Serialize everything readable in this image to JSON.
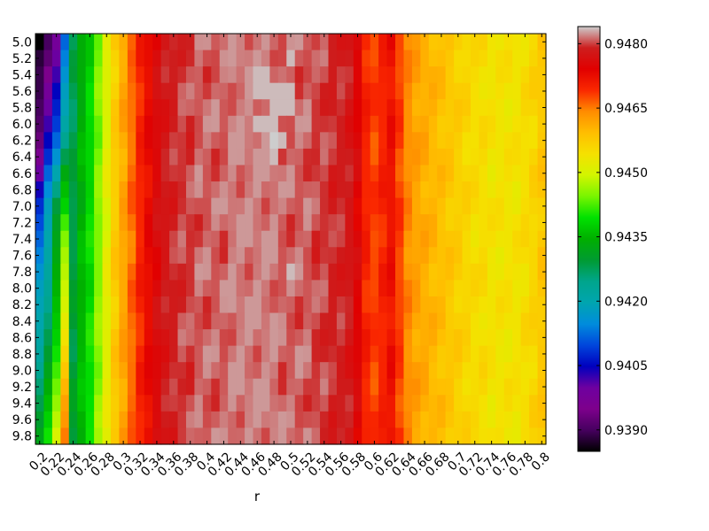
{
  "chart_data": {
    "type": "heatmap",
    "title": "",
    "xlabel": "r",
    "ylabel": "",
    "x_ticks": [
      "0.2",
      "0.22",
      "0.24",
      "0.26",
      "0.28",
      "0.3",
      "0.32",
      "0.34",
      "0.36",
      "0.38",
      "0.4",
      "0.42",
      "0.44",
      "0.46",
      "0.48",
      "0.5",
      "0.52",
      "0.54",
      "0.56",
      "0.58",
      "0.6",
      "0.62",
      "0.64",
      "0.66",
      "0.68",
      "0.7",
      "0.72",
      "0.74",
      "0.76",
      "0.78",
      "0.8"
    ],
    "y_ticks": [
      "5.0",
      "5.2",
      "5.4",
      "5.6",
      "5.8",
      "6.0",
      "6.2",
      "6.4",
      "6.6",
      "6.8",
      "7.0",
      "7.2",
      "7.4",
      "7.6",
      "7.8",
      "8.0",
      "8.2",
      "8.4",
      "8.6",
      "8.8",
      "9.0",
      "9.2",
      "9.4",
      "9.6",
      "9.8"
    ],
    "colorbar": {
      "colormap": "nipy_spectral",
      "vmin": 0.9385,
      "vmax": 0.9484,
      "ticks": [
        "0.9390",
        "0.9405",
        "0.9420",
        "0.9435",
        "0.9450",
        "0.9465",
        "0.9480"
      ]
    },
    "x": [
      0.2,
      0.21,
      0.22,
      0.23,
      0.24,
      0.25,
      0.26,
      0.27,
      0.28,
      0.29,
      0.3,
      0.31,
      0.32,
      0.33,
      0.34,
      0.35,
      0.36,
      0.37,
      0.38,
      0.39,
      0.4,
      0.41,
      0.42,
      0.43,
      0.44,
      0.45,
      0.46,
      0.47,
      0.48,
      0.49,
      0.5,
      0.51,
      0.52,
      0.53,
      0.54,
      0.55,
      0.56,
      0.57,
      0.58,
      0.59,
      0.6,
      0.61,
      0.62,
      0.63,
      0.64,
      0.65,
      0.66,
      0.67,
      0.68,
      0.69,
      0.7,
      0.71,
      0.72,
      0.73,
      0.74,
      0.75,
      0.76,
      0.77,
      0.78,
      0.79,
      0.8
    ],
    "y": [
      5.0,
      5.2,
      5.4,
      5.6,
      5.8,
      6.0,
      6.2,
      6.4,
      6.6,
      6.8,
      7.0,
      7.2,
      7.4,
      7.6,
      7.8,
      8.0,
      8.2,
      8.4,
      8.6,
      8.8,
      9.0,
      9.2,
      9.4,
      9.6,
      9.8
    ],
    "column_profile": [
      0.941,
      0.9412,
      0.942,
      0.9426,
      0.943,
      0.9436,
      0.944,
      0.9446,
      0.9452,
      0.9458,
      0.9462,
      0.9466,
      0.947,
      0.9473,
      0.9476,
      0.9478,
      0.9479,
      0.948,
      0.948,
      0.9481,
      0.9481,
      0.9481,
      0.9481,
      0.9482,
      0.9482,
      0.9482,
      0.9482,
      0.9482,
      0.9482,
      0.9481,
      0.9481,
      0.9481,
      0.9481,
      0.948,
      0.948,
      0.9479,
      0.9479,
      0.9478,
      0.9475,
      0.947,
      0.9468,
      0.947,
      0.9472,
      0.9468,
      0.9464,
      0.9462,
      0.9461,
      0.946,
      0.9459,
      0.9458,
      0.9457,
      0.9456,
      0.9455,
      0.9455,
      0.9454,
      0.9454,
      0.9454,
      0.9454,
      0.9455,
      0.9456,
      0.9458
    ],
    "row_adjust_first4": [
      [
        0.9385,
        0.939,
        0.9398,
        0.9412
      ],
      [
        0.9388,
        0.9392,
        0.94,
        0.9414
      ],
      [
        0.9389,
        0.9395,
        0.9402,
        0.9416
      ],
      [
        0.9389,
        0.9398,
        0.9405,
        0.9418
      ],
      [
        0.939,
        0.94,
        0.9407,
        0.9419
      ],
      [
        0.9391,
        0.9402,
        0.9409,
        0.9421
      ],
      [
        0.9393,
        0.9405,
        0.9412,
        0.9424
      ],
      [
        0.9396,
        0.9408,
        0.9416,
        0.9428
      ],
      [
        0.94,
        0.9412,
        0.942,
        0.9433
      ],
      [
        0.9404,
        0.9415,
        0.9425,
        0.9436
      ],
      [
        0.9408,
        0.9418,
        0.9429,
        0.9438
      ],
      [
        0.941,
        0.9419,
        0.9431,
        0.9442
      ],
      [
        0.9412,
        0.942,
        0.9432,
        0.9445
      ],
      [
        0.9414,
        0.9421,
        0.9433,
        0.9447
      ],
      [
        0.9416,
        0.9422,
        0.9434,
        0.9448
      ],
      [
        0.9418,
        0.9423,
        0.9435,
        0.9449
      ],
      [
        0.9419,
        0.9424,
        0.9436,
        0.945
      ],
      [
        0.942,
        0.9426,
        0.9437,
        0.9452
      ],
      [
        0.9421,
        0.9428,
        0.9438,
        0.9454
      ],
      [
        0.9422,
        0.943,
        0.944,
        0.9456
      ],
      [
        0.9424,
        0.9432,
        0.9442,
        0.9458
      ],
      [
        0.9426,
        0.9434,
        0.9444,
        0.946
      ],
      [
        0.9428,
        0.9436,
        0.9446,
        0.9462
      ],
      [
        0.943,
        0.9438,
        0.9448,
        0.9463
      ],
      [
        0.9432,
        0.944,
        0.945,
        0.9465
      ]
    ],
    "max_cells": [
      [
        28,
        6
      ],
      [
        29,
        6
      ],
      [
        28,
        7
      ],
      [
        26,
        3
      ],
      [
        27,
        3
      ],
      [
        28,
        3
      ],
      [
        29,
        3
      ],
      [
        30,
        3
      ],
      [
        28,
        4
      ],
      [
        29,
        4
      ],
      [
        30,
        4
      ],
      [
        26,
        5
      ],
      [
        27,
        5
      ],
      [
        28,
        5
      ],
      [
        26,
        2
      ],
      [
        27,
        2
      ],
      [
        30,
        1
      ],
      [
        30,
        14
      ]
    ]
  }
}
